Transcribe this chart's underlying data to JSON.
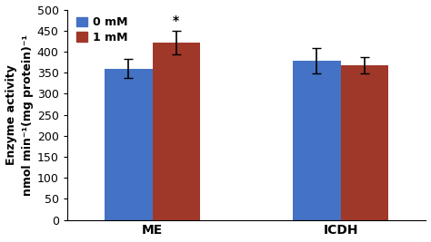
{
  "groups": [
    "ME",
    "ICDH"
  ],
  "bar0_values": [
    360,
    378
  ],
  "bar1_values": [
    422,
    368
  ],
  "bar0_errors": [
    22,
    30
  ],
  "bar1_errors": [
    28,
    20
  ],
  "bar0_color": "#4472C4",
  "bar1_color": "#A0382A",
  "bar0_label": "0 mM",
  "bar1_label": "1 mM",
  "ylim": [
    0,
    500
  ],
  "yticks": [
    0,
    50,
    100,
    150,
    200,
    250,
    300,
    350,
    400,
    450,
    500
  ],
  "ylabel_line1": "Enzyme activity",
  "ylabel_line2": "nmol min⁻¹(mg protein)⁻¹",
  "significance_group": 0,
  "significance_bar": 1,
  "significance_symbol": "*",
  "bar_width": 0.38,
  "group_centers": [
    1.0,
    2.5
  ],
  "background_color": "#ffffff",
  "axis_color": "#000000",
  "tick_fontsize": 9,
  "label_fontsize": 9,
  "legend_fontsize": 9,
  "legend_marker_size": 10
}
